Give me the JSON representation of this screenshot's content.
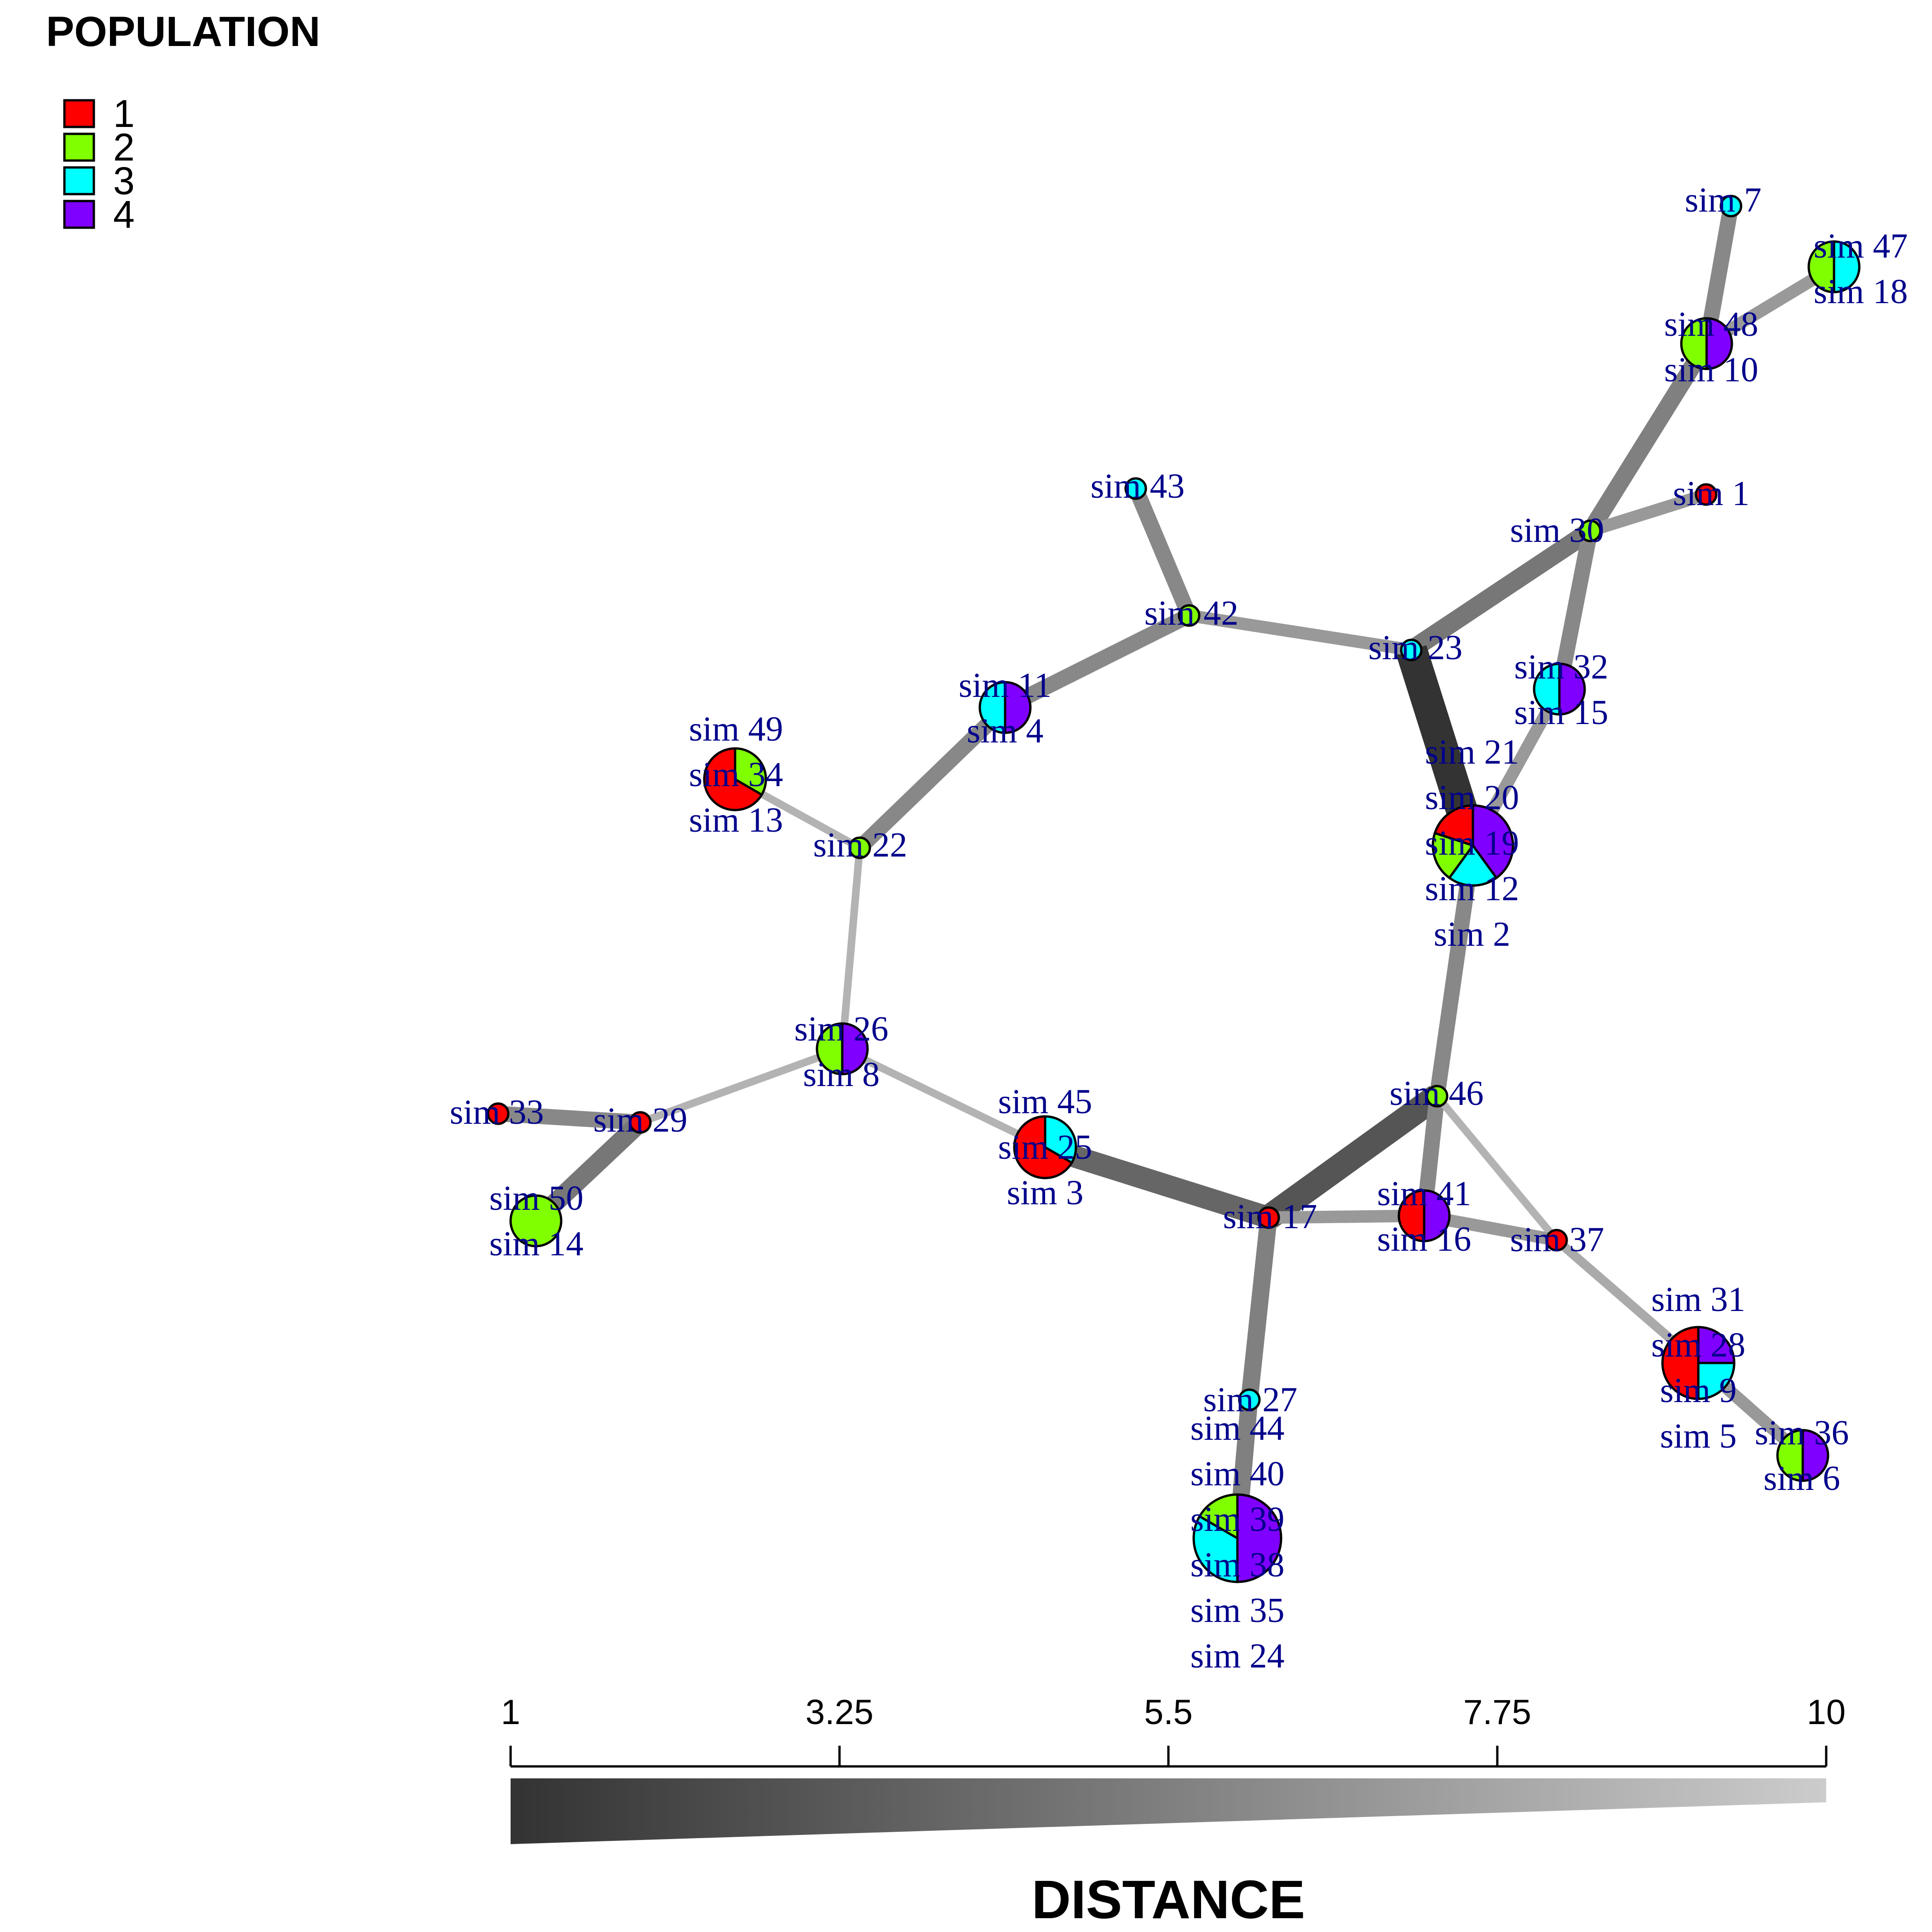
{
  "legend": {
    "title": "POPULATION",
    "items": [
      {
        "label": "1",
        "color": "#ff0000"
      },
      {
        "label": "2",
        "color": "#80ff00"
      },
      {
        "label": "3",
        "color": "#00ffff"
      },
      {
        "label": "4",
        "color": "#8000ff"
      }
    ]
  },
  "distance_scale": {
    "title": "DISTANCE",
    "ticks": [
      "1",
      "3.25",
      "5.5",
      "7.75",
      "10"
    ],
    "dark_color": "#333333",
    "light_color": "#cccccc"
  },
  "nodes": [
    {
      "id": "n7",
      "labels": [
        "sim 7"
      ],
      "populations": [
        3
      ]
    },
    {
      "id": "n47",
      "labels": [
        "sim 47",
        "sim 18"
      ],
      "populations": [
        2,
        3
      ]
    },
    {
      "id": "n48",
      "labels": [
        "sim 48",
        "sim 10"
      ],
      "populations": [
        2,
        4
      ]
    },
    {
      "id": "n1",
      "labels": [
        "sim 1"
      ],
      "populations": [
        1
      ]
    },
    {
      "id": "n30",
      "labels": [
        "sim 30"
      ],
      "populations": [
        2
      ]
    },
    {
      "id": "n43",
      "labels": [
        "sim 43"
      ],
      "populations": [
        3
      ]
    },
    {
      "id": "n42",
      "labels": [
        "sim 42"
      ],
      "populations": [
        2
      ]
    },
    {
      "id": "n23",
      "labels": [
        "sim 23"
      ],
      "populations": [
        3
      ]
    },
    {
      "id": "n32",
      "labels": [
        "sim 32",
        "sim 15"
      ],
      "populations": [
        3,
        4
      ]
    },
    {
      "id": "n11",
      "labels": [
        "sim 11",
        "sim 4"
      ],
      "populations": [
        3,
        4
      ]
    },
    {
      "id": "n49",
      "labels": [
        "sim 49",
        "sim 34",
        "sim 13"
      ],
      "populations": [
        1,
        1,
        2
      ]
    },
    {
      "id": "n21",
      "labels": [
        "sim 21",
        "sim 20",
        "sim 19",
        "sim 12",
        "sim 2"
      ],
      "populations": [
        1,
        2,
        3,
        4,
        4
      ]
    },
    {
      "id": "n22",
      "labels": [
        "sim 22"
      ],
      "populations": [
        2
      ]
    },
    {
      "id": "n26",
      "labels": [
        "sim 26",
        "sim 8"
      ],
      "populations": [
        2,
        4
      ]
    },
    {
      "id": "n46",
      "labels": [
        "sim 46"
      ],
      "populations": [
        2
      ]
    },
    {
      "id": "n33",
      "labels": [
        "sim 33"
      ],
      "populations": [
        1
      ]
    },
    {
      "id": "n29",
      "labels": [
        "sim 29"
      ],
      "populations": [
        1
      ]
    },
    {
      "id": "n45",
      "labels": [
        "sim 45",
        "sim 25",
        "sim 3"
      ],
      "populations": [
        1,
        1,
        3
      ]
    },
    {
      "id": "n50",
      "labels": [
        "sim 50",
        "sim 14"
      ],
      "populations": [
        2,
        2
      ]
    },
    {
      "id": "n17",
      "labels": [
        "sim 17"
      ],
      "populations": [
        1
      ]
    },
    {
      "id": "n41",
      "labels": [
        "sim 41",
        "sim 16"
      ],
      "populations": [
        1,
        4
      ]
    },
    {
      "id": "n37",
      "labels": [
        "sim 37"
      ],
      "populations": [
        1
      ]
    },
    {
      "id": "n31",
      "labels": [
        "sim 31",
        "sim 28",
        "sim 9",
        "sim 5"
      ],
      "populations": [
        1,
        1,
        3,
        4
      ]
    },
    {
      "id": "n27",
      "labels": [
        "sim 27"
      ],
      "populations": [
        3
      ]
    },
    {
      "id": "n36",
      "labels": [
        "sim 36",
        "sim 6"
      ],
      "populations": [
        2,
        4
      ]
    },
    {
      "id": "n44",
      "labels": [
        "sim 44",
        "sim 40",
        "sim 39",
        "sim 38",
        "sim 35",
        "sim 24"
      ],
      "populations": [
        2,
        3,
        3,
        4,
        4,
        4
      ]
    }
  ],
  "edges": [
    {
      "from": "n7",
      "to": "n48",
      "distance": 6
    },
    {
      "from": "n47",
      "to": "n48",
      "distance": 7
    },
    {
      "from": "n48",
      "to": "n30",
      "distance": 5.5
    },
    {
      "from": "n1",
      "to": "n30",
      "distance": 7
    },
    {
      "from": "n30",
      "to": "n23",
      "distance": 5
    },
    {
      "from": "n30",
      "to": "n32",
      "distance": 6
    },
    {
      "from": "n32",
      "to": "n21",
      "distance": 7
    },
    {
      "from": "n23",
      "to": "n21",
      "distance": 1
    },
    {
      "from": "n43",
      "to": "n42",
      "distance": 6
    },
    {
      "from": "n42",
      "to": "n23",
      "distance": 7
    },
    {
      "from": "n42",
      "to": "n11",
      "distance": 6
    },
    {
      "from": "n11",
      "to": "n22",
      "distance": 6
    },
    {
      "from": "n49",
      "to": "n22",
      "distance": 8.5
    },
    {
      "from": "n22",
      "to": "n26",
      "distance": 8.5
    },
    {
      "from": "n21",
      "to": "n46",
      "distance": 6
    },
    {
      "from": "n26",
      "to": "n29",
      "distance": 8.5
    },
    {
      "from": "n26",
      "to": "n45",
      "distance": 8.5
    },
    {
      "from": "n33",
      "to": "n29",
      "distance": 6
    },
    {
      "from": "n29",
      "to": "n50",
      "distance": 5
    },
    {
      "from": "n45",
      "to": "n17",
      "distance": 4
    },
    {
      "from": "n46",
      "to": "n17",
      "distance": 3
    },
    {
      "from": "n46",
      "to": "n41",
      "distance": 6
    },
    {
      "from": "n46",
      "to": "n37",
      "distance": 8.5
    },
    {
      "from": "n17",
      "to": "n41",
      "distance": 7
    },
    {
      "from": "n41",
      "to": "n37",
      "distance": 7
    },
    {
      "from": "n37",
      "to": "n31",
      "distance": 8
    },
    {
      "from": "n17",
      "to": "n27",
      "distance": 5.5
    },
    {
      "from": "n27",
      "to": "n44",
      "distance": 5.5
    },
    {
      "from": "n31",
      "to": "n36",
      "distance": 7
    }
  ]
}
